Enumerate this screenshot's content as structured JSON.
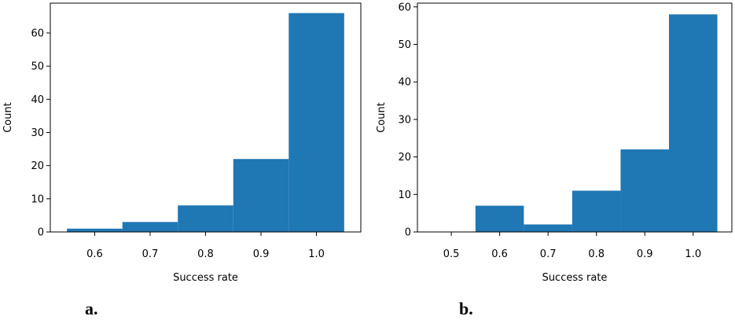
{
  "chart_data": [
    {
      "type": "bar",
      "panel_label": "a.",
      "xlabel": "Success rate",
      "ylabel": "Count",
      "xlim": [
        0.52,
        1.08
      ],
      "ylim": [
        0,
        69
      ],
      "xticks": [
        "0.6",
        "0.7",
        "0.8",
        "0.9",
        "1.0"
      ],
      "yticks": [
        "0",
        "10",
        "20",
        "30",
        "40",
        "50",
        "60"
      ],
      "bins": [
        {
          "start": 0.55,
          "end": 0.65,
          "value": 1
        },
        {
          "start": 0.65,
          "end": 0.75,
          "value": 3
        },
        {
          "start": 0.75,
          "end": 0.85,
          "value": 8
        },
        {
          "start": 0.85,
          "end": 0.95,
          "value": 22
        },
        {
          "start": 0.95,
          "end": 1.05,
          "value": 66
        }
      ],
      "color": "#1f77b4"
    },
    {
      "type": "bar",
      "panel_label": "b.",
      "xlabel": "Success rate",
      "ylabel": "Count",
      "xlim": [
        0.43,
        1.08
      ],
      "ylim": [
        0,
        61
      ],
      "xticks": [
        "0.5",
        "0.6",
        "0.7",
        "0.8",
        "0.9",
        "1.0"
      ],
      "yticks": [
        "0",
        "10",
        "20",
        "30",
        "40",
        "50",
        "60"
      ],
      "bins": [
        {
          "start": 0.55,
          "end": 0.65,
          "value": 7
        },
        {
          "start": 0.65,
          "end": 0.75,
          "value": 2
        },
        {
          "start": 0.75,
          "end": 0.85,
          "value": 11
        },
        {
          "start": 0.85,
          "end": 0.95,
          "value": 22
        },
        {
          "start": 0.95,
          "end": 1.05,
          "value": 58
        }
      ],
      "color": "#1f77b4"
    }
  ]
}
